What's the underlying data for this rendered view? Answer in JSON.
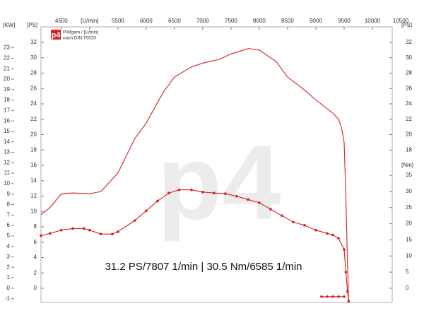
{
  "chart_data": {
    "type": "line",
    "annotation": "31.2 PS/7807 1/min | 30.5 Nm/6585 1/min",
    "watermark": "p4",
    "legend_logo": "p4",
    "legend_lines": [
      "P/Mgem / [U/min]",
      "nach DIN 70020"
    ],
    "kw_label": "[KW]",
    "ps_label": "[PS]",
    "nm_label": "[Nm]",
    "xlim": [
      4140,
      10350
    ],
    "xticks": [
      4500,
      {
        "value": 5000,
        "label": "[U/min]"
      },
      5500,
      6000,
      6500,
      7000,
      7500,
      8000,
      8500,
      9000,
      9500,
      10000,
      10500
    ],
    "ylim": [
      -1.84,
      34.02
    ],
    "yticks": [
      0,
      2,
      4,
      6,
      8,
      10,
      12,
      14,
      16,
      18,
      20,
      22,
      24,
      26,
      28,
      30,
      32
    ],
    "kwlim": [
      -1.36,
      25.0
    ],
    "kwticks": [
      -1,
      0,
      1,
      2,
      3,
      4,
      5,
      6,
      7,
      8,
      9,
      10,
      11,
      12,
      13,
      14,
      15,
      16,
      17,
      18,
      19,
      20,
      21,
      22,
      23
    ],
    "y2lim": [
      -4.4,
      81
    ],
    "y2ticks": [
      0,
      5,
      10,
      15,
      20,
      25,
      30,
      35
    ],
    "series": [
      {
        "color": "#d62020",
        "markers": false,
        "x": [
          4140,
          4300,
          4500,
          4700,
          5000,
          5200,
          5500,
          5800,
          6000,
          6300,
          6500,
          6800,
          7000,
          7300,
          7500,
          7807,
          8000,
          8300,
          8500,
          8800,
          9000,
          9300,
          9400,
          9450,
          9500,
          9530,
          9560,
          9580
        ],
        "values": [
          9.6,
          10.5,
          12.3,
          12.4,
          12.3,
          12.6,
          15,
          19.5,
          21.5,
          25.5,
          27.5,
          28.8,
          29.3,
          29.8,
          30.5,
          31.2,
          31,
          29.5,
          27.5,
          25.8,
          24.5,
          22.8,
          22,
          21,
          19,
          12,
          3,
          -1.8
        ]
      },
      {
        "color": "#d62020",
        "markers": true,
        "axis": "y2",
        "x": [
          4140,
          4300,
          4500,
          4700,
          4900,
          5000,
          5200,
          5400,
          5500,
          5800,
          6000,
          6200,
          6400,
          6585,
          6800,
          7000,
          7200,
          7400,
          7600,
          7800,
          8000,
          8200,
          8400,
          8600,
          8800,
          9000,
          9200,
          9300,
          9400,
          9500,
          9530,
          9560,
          9580,
          9580,
          9100,
          9200,
          9300,
          9400,
          9500
        ],
        "values": [
          16.3,
          17,
          18,
          18.5,
          18.5,
          18,
          16.8,
          16.8,
          17.5,
          21,
          24,
          27,
          29.5,
          30.5,
          30.5,
          29.8,
          29.5,
          29.3,
          28.5,
          27.5,
          26.5,
          24.5,
          22.5,
          20.5,
          19.5,
          18,
          17,
          16.5,
          15.5,
          12,
          5,
          -1,
          -4,
          null,
          -2.6,
          -2.6,
          -2.6,
          -2.6,
          -2.6
        ]
      }
    ]
  }
}
